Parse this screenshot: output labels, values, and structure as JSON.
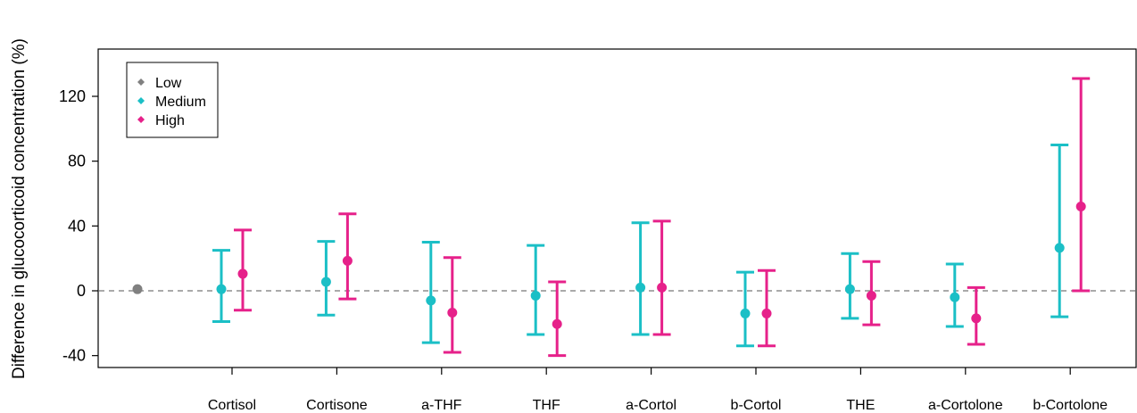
{
  "chart_data": {
    "type": "scatter",
    "subtype": "point-with-error-bars",
    "title": "",
    "xlabel": "",
    "ylabel": "Difference in glucocorticoid concentration (%)",
    "ylim": [
      -45,
      145
    ],
    "y_ticks": [
      -40,
      0,
      40,
      80,
      120
    ],
    "reference_line": {
      "y": 0,
      "style": "dashed",
      "color": "#777777"
    },
    "grid": false,
    "legend": {
      "placement": "top-left",
      "entries": [
        {
          "name": "Low",
          "color": "#808080"
        },
        {
          "name": "Medium",
          "color": "#1bbfc6"
        },
        {
          "name": "High",
          "color": "#e6218a"
        }
      ]
    },
    "categories": [
      "Cortisol",
      "Cortisone",
      "a-THF",
      "THF",
      "a-Cortol",
      "b-Cortol",
      "THE",
      "a-Cortolone",
      "b-Cortolone"
    ],
    "reference_point": {
      "name": "Low",
      "value": 1
    },
    "series": [
      {
        "name": "Medium",
        "color": "#1bbfc6",
        "estimate": [
          1,
          5.5,
          -6,
          -3,
          2,
          -14,
          1,
          -4,
          26.5
        ],
        "lower": [
          -19,
          -15,
          -32,
          -27,
          -27,
          -34,
          -17,
          -22,
          -16
        ],
        "upper": [
          25,
          30.5,
          30,
          28,
          42,
          11.5,
          23,
          16.5,
          90
        ]
      },
      {
        "name": "High",
        "color": "#e6218a",
        "estimate": [
          10.5,
          18.5,
          -13.5,
          -20.5,
          2,
          -14,
          -3,
          -17,
          52
        ],
        "lower": [
          -12,
          -5,
          -38,
          -40,
          -27,
          -34,
          -21,
          -33,
          0
        ],
        "upper": [
          37.5,
          47.5,
          20.5,
          5.5,
          43,
          12.5,
          18,
          2,
          131
        ]
      }
    ]
  }
}
